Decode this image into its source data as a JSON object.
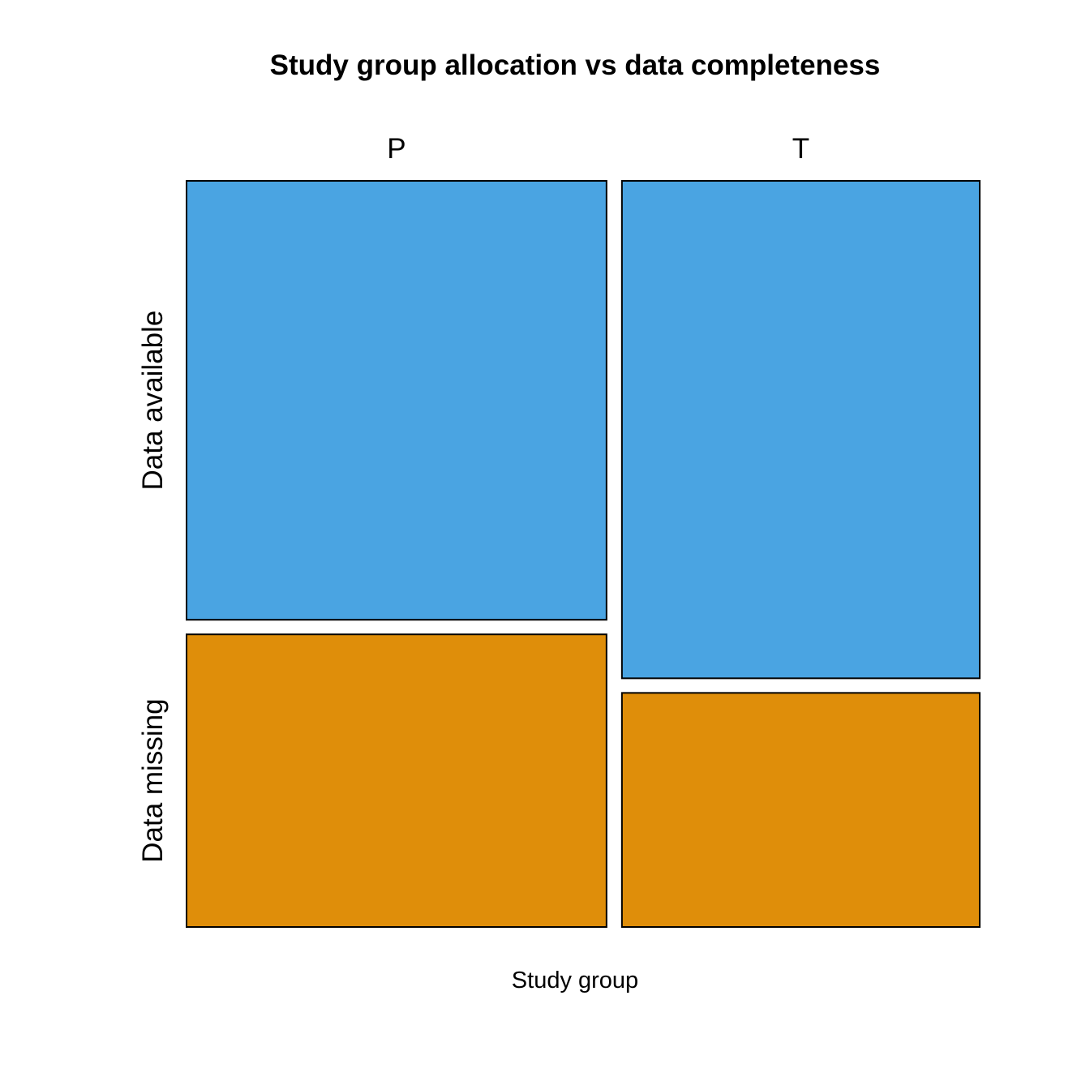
{
  "chart_data": {
    "type": "mosaic",
    "title": "Study group allocation vs data completeness",
    "xlabel": "Study group",
    "columns": [
      {
        "label": "P",
        "width_share": 0.54,
        "segments": [
          {
            "category": "Data available",
            "proportion": 0.6
          },
          {
            "category": "Data missing",
            "proportion": 0.4
          }
        ]
      },
      {
        "label": "T",
        "width_share": 0.46,
        "segments": [
          {
            "category": "Data available",
            "proportion": 0.68
          },
          {
            "category": "Data missing",
            "proportion": 0.32
          }
        ]
      }
    ],
    "row_labels": [
      "Data available",
      "Data missing"
    ],
    "colors": {
      "Data available": "#4aa4e2",
      "Data missing": "#df8e0a"
    }
  }
}
